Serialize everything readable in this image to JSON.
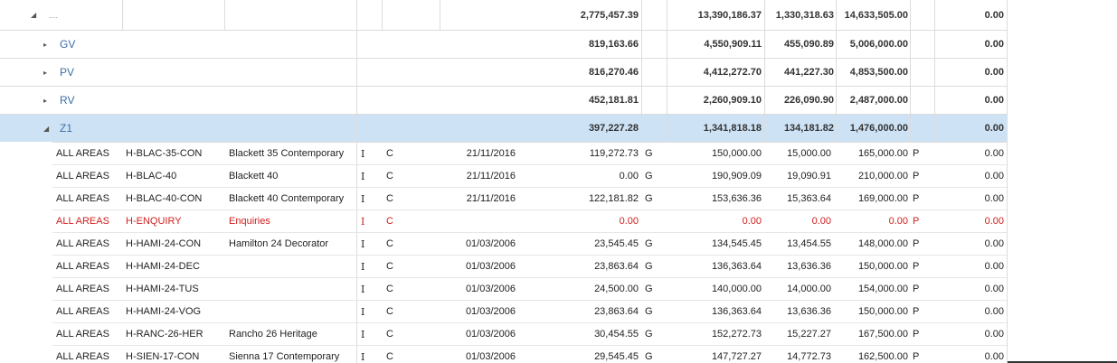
{
  "groups": [
    {
      "key": "root",
      "label": "....",
      "expanded": true,
      "toggle": "◢",
      "v1": "2,775,457.39",
      "v2": "13,390,186.37",
      "v3": "1,330,318.63",
      "v4": "14,633,505.00",
      "v5": "0.00"
    },
    {
      "key": "gv",
      "label": "GV",
      "expanded": false,
      "toggle": "▸",
      "v1": "819,163.66",
      "v2": "4,550,909.11",
      "v3": "455,090.89",
      "v4": "5,006,000.00",
      "v5": "0.00"
    },
    {
      "key": "pv",
      "label": "PV",
      "expanded": false,
      "toggle": "▸",
      "v1": "816,270.46",
      "v2": "4,412,272.70",
      "v3": "441,227.30",
      "v4": "4,853,500.00",
      "v5": "0.00"
    },
    {
      "key": "rv",
      "label": "RV",
      "expanded": false,
      "toggle": "▸",
      "v1": "452,181.81",
      "v2": "2,260,909.10",
      "v3": "226,090.90",
      "v4": "2,487,000.00",
      "v5": "0.00"
    },
    {
      "key": "z1",
      "label": "Z1",
      "expanded": true,
      "toggle": "◢",
      "v1": "397,227.28",
      "v2": "1,341,818.18",
      "v3": "134,181.82",
      "v4": "1,476,000.00",
      "v5": "0.00"
    }
  ],
  "rows": [
    {
      "area": "ALL AREAS",
      "code": "H-BLAC-35-CON",
      "desc": "Blackett 35 Contemporary",
      "f1": "I",
      "f2": "C",
      "date": "21/11/2016",
      "amt": "119,272.73",
      "g": "G",
      "v2": "150,000.00",
      "v3": "15,000.00",
      "v4": "165,000.00",
      "p": "P",
      "v5": "0.00",
      "red": false
    },
    {
      "area": "ALL AREAS",
      "code": "H-BLAC-40",
      "desc": "Blackett 40",
      "f1": "I",
      "f2": "C",
      "date": "21/11/2016",
      "amt": "0.00",
      "g": "G",
      "v2": "190,909.09",
      "v3": "19,090.91",
      "v4": "210,000.00",
      "p": "P",
      "v5": "0.00",
      "red": false
    },
    {
      "area": "ALL AREAS",
      "code": "H-BLAC-40-CON",
      "desc": "Blackett 40 Contemporary",
      "f1": "I",
      "f2": "C",
      "date": "21/11/2016",
      "amt": "122,181.82",
      "g": "G",
      "v2": "153,636.36",
      "v3": "15,363.64",
      "v4": "169,000.00",
      "p": "P",
      "v5": "0.00",
      "red": false
    },
    {
      "area": "ALL AREAS",
      "code": "H-ENQUIRY",
      "desc": "Enquiries",
      "f1": "I",
      "f2": "C",
      "date": "",
      "amt": "0.00",
      "g": "",
      "v2": "0.00",
      "v3": "0.00",
      "v4": "0.00",
      "p": "P",
      "v5": "0.00",
      "red": true
    },
    {
      "area": "ALL AREAS",
      "code": "H-HAMI-24-CON",
      "desc": "Hamilton 24 Decorator",
      "f1": "I",
      "f2": "C",
      "date": "01/03/2006",
      "amt": "23,545.45",
      "g": "G",
      "v2": "134,545.45",
      "v3": "13,454.55",
      "v4": "148,000.00",
      "p": "P",
      "v5": "0.00",
      "red": false
    },
    {
      "area": "ALL AREAS",
      "code": "H-HAMI-24-DEC",
      "desc": "",
      "f1": "I",
      "f2": "C",
      "date": "01/03/2006",
      "amt": "23,863.64",
      "g": "G",
      "v2": "136,363.64",
      "v3": "13,636.36",
      "v4": "150,000.00",
      "p": "P",
      "v5": "0.00",
      "red": false
    },
    {
      "area": "ALL AREAS",
      "code": "H-HAMI-24-TUS",
      "desc": "",
      "f1": "I",
      "f2": "C",
      "date": "01/03/2006",
      "amt": "24,500.00",
      "g": "G",
      "v2": "140,000.00",
      "v3": "14,000.00",
      "v4": "154,000.00",
      "p": "P",
      "v5": "0.00",
      "red": false
    },
    {
      "area": "ALL AREAS",
      "code": "H-HAMI-24-VOG",
      "desc": "",
      "f1": "I",
      "f2": "C",
      "date": "01/03/2006",
      "amt": "23,863.64",
      "g": "G",
      "v2": "136,363.64",
      "v3": "13,636.36",
      "v4": "150,000.00",
      "p": "P",
      "v5": "0.00",
      "red": false
    },
    {
      "area": "ALL AREAS",
      "code": "H-RANC-26-HER",
      "desc": "Rancho 26 Heritage",
      "f1": "I",
      "f2": "C",
      "date": "01/03/2006",
      "amt": "30,454.55",
      "g": "G",
      "v2": "152,272.73",
      "v3": "15,227.27",
      "v4": "167,500.00",
      "p": "P",
      "v5": "0.00",
      "red": false
    },
    {
      "area": "ALL AREAS",
      "code": "H-SIEN-17-CON",
      "desc": "Sienna 17 Contemporary",
      "f1": "I",
      "f2": "C",
      "date": "01/03/2006",
      "amt": "29,545.45",
      "g": "G",
      "v2": "147,727.27",
      "v3": "14,772.73",
      "v4": "162,500.00",
      "p": "P",
      "v5": "0.00",
      "red": false
    }
  ],
  "colors": {
    "selected": "#cde3f5",
    "group_label": "#3b6fa8",
    "warning_text": "#d02020",
    "gridline": "#dcdcdc"
  },
  "icons": {
    "expanded": "collapse-triangle-icon",
    "collapsed": "expand-triangle-icon"
  }
}
